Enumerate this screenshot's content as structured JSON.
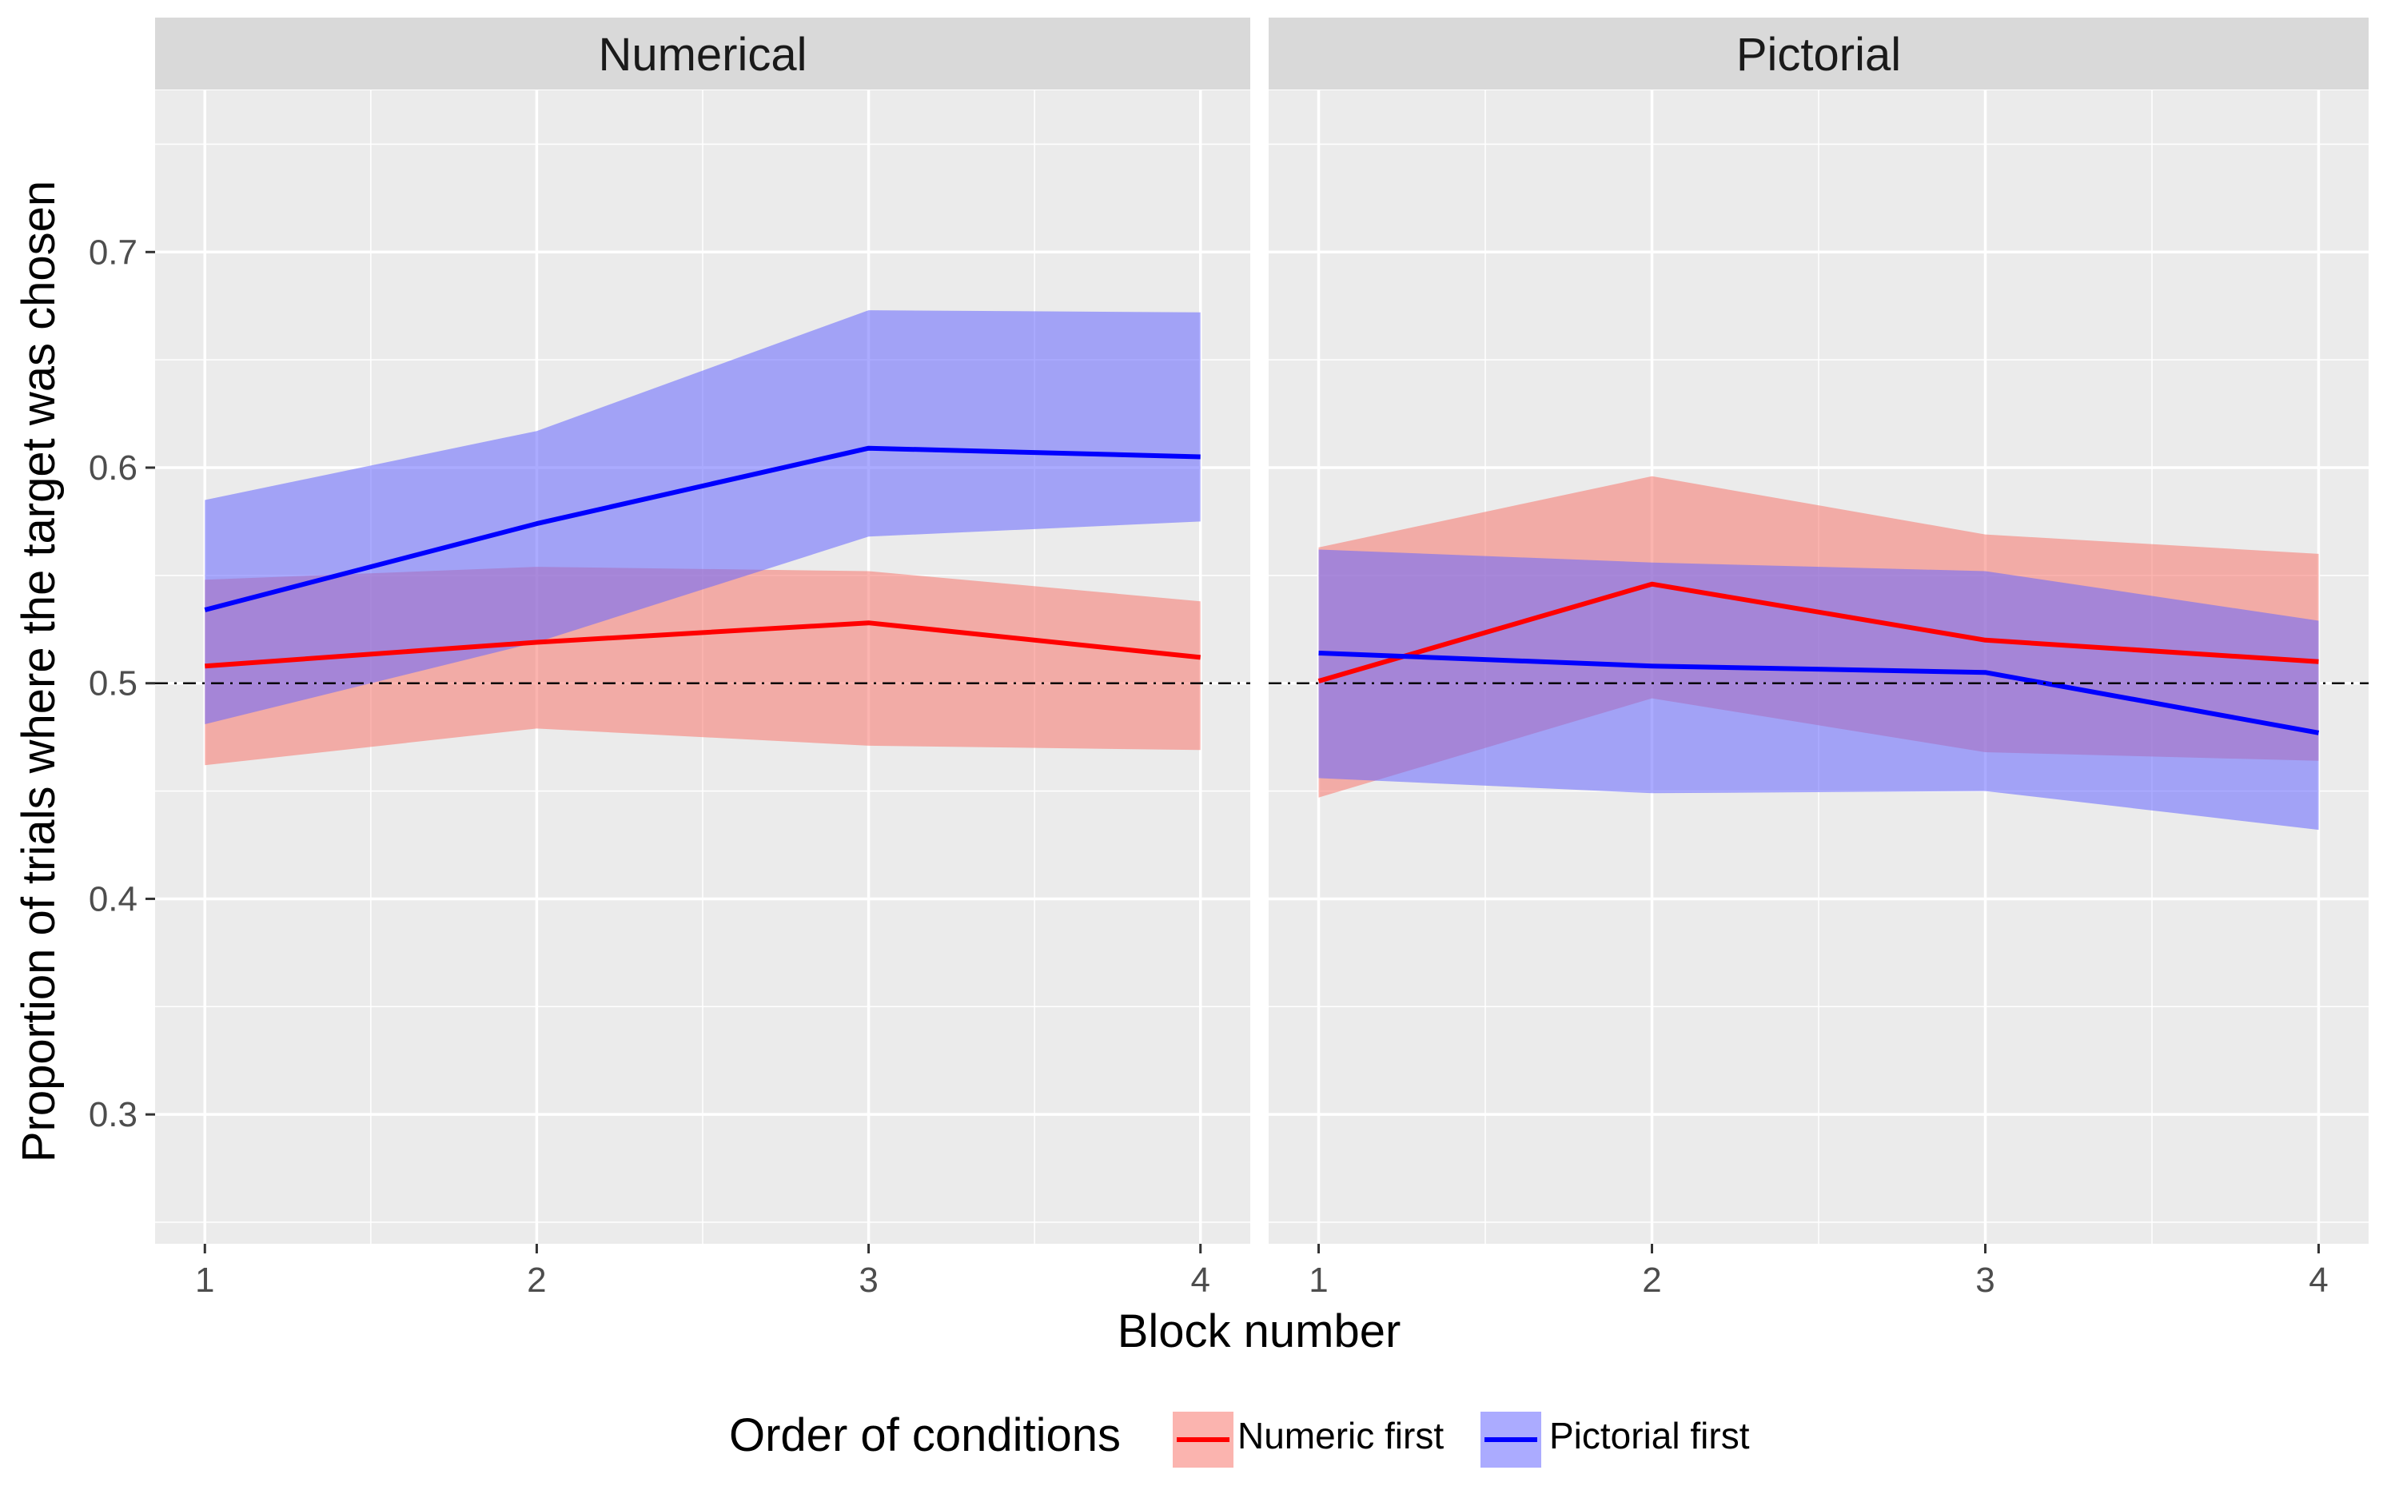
{
  "chart_data": {
    "type": "line",
    "xlabel": "Block number",
    "ylabel": "Proportion of trials where the target was chosen",
    "ylim": [
      0.24,
      0.775
    ],
    "xlim": [
      0.85,
      4.15
    ],
    "yticks": [
      0.3,
      0.4,
      0.5,
      0.6,
      0.7
    ],
    "ytick_labels": [
      "0.3",
      "0.4",
      "0.5",
      "0.6",
      "0.7"
    ],
    "xticks": [
      1,
      2,
      3,
      4
    ],
    "xtick_labels": [
      "1",
      "2",
      "3",
      "4"
    ],
    "reference_line": {
      "y": 0.5,
      "style": "dash-dot",
      "color": "#000000"
    },
    "grid": true,
    "legend": {
      "title": "Order of conditions",
      "position": "bottom",
      "entries": [
        "Numeric first",
        "Pictorial first"
      ]
    },
    "colors": {
      "numeric_line": "#ff0000",
      "numeric_band": "#f8766d",
      "pictorial_line": "#0000ff",
      "pictorial_band": "#6666ff",
      "panel_bg": "#ebebeb",
      "strip_bg": "#d9d9d9"
    },
    "panels": [
      {
        "label": "Numerical",
        "series": [
          {
            "name": "Numeric first",
            "x": [
              1,
              2,
              3,
              4
            ],
            "y": [
              0.508,
              0.519,
              0.528,
              0.512
            ],
            "lower": [
              0.462,
              0.479,
              0.471,
              0.469
            ],
            "upper": [
              0.548,
              0.554,
              0.552,
              0.538
            ]
          },
          {
            "name": "Pictorial first",
            "x": [
              1,
              2,
              3,
              4
            ],
            "y": [
              0.534,
              0.574,
              0.609,
              0.605
            ],
            "lower": [
              0.481,
              0.519,
              0.568,
              0.575
            ],
            "upper": [
              0.585,
              0.617,
              0.673,
              0.672
            ]
          }
        ]
      },
      {
        "label": "Pictorial",
        "series": [
          {
            "name": "Numeric first",
            "x": [
              1,
              2,
              3,
              4
            ],
            "y": [
              0.501,
              0.546,
              0.52,
              0.51
            ],
            "lower": [
              0.447,
              0.493,
              0.468,
              0.464
            ],
            "upper": [
              0.563,
              0.596,
              0.569,
              0.56
            ]
          },
          {
            "name": "Pictorial first",
            "x": [
              1,
              2,
              3,
              4
            ],
            "y": [
              0.514,
              0.508,
              0.505,
              0.477
            ],
            "lower": [
              0.456,
              0.449,
              0.45,
              0.432
            ],
            "upper": [
              0.562,
              0.556,
              0.552,
              0.529
            ]
          }
        ]
      }
    ]
  }
}
